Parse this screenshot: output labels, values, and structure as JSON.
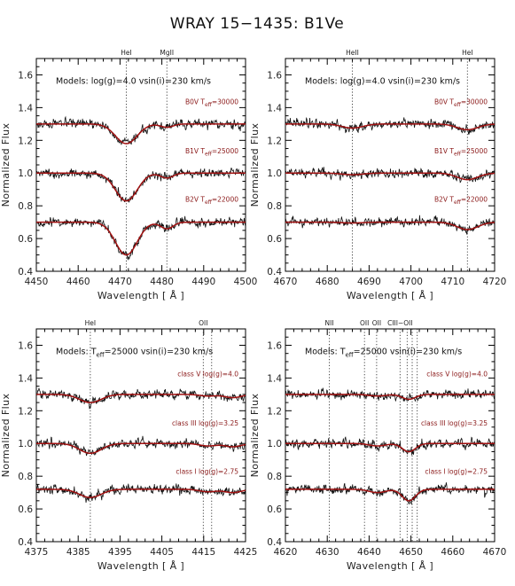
{
  "figure": {
    "title": "WRAY 15−1435: B1Ve",
    "colors": {
      "observed": "#111111",
      "model": "#a01010",
      "axis": "#000000",
      "label_red": "#8b1a1a"
    }
  },
  "chart_data": [
    {
      "type": "line",
      "xlabel": "Wavelength [ Å ]",
      "ylabel": "Normalized Flux",
      "xlim": [
        4450,
        4500
      ],
      "ylim": [
        0.4,
        1.7
      ],
      "xticks": [
        4450,
        4460,
        4470,
        4480,
        4490,
        4500
      ],
      "xtick_labels": [
        "4450",
        "4460",
        "4470",
        "4480",
        "4490",
        "4500"
      ],
      "yticks": [
        0.4,
        0.6,
        0.8,
        1.0,
        1.2,
        1.4,
        1.6
      ],
      "ytick_labels": [
        "0.4",
        "0.6",
        "0.8",
        "1.0",
        "1.2",
        "1.4",
        "1.6"
      ],
      "annotation": "Models: log(g)=4.0 vsin(i)=230 km/s",
      "lines": [
        {
          "label": "HeI",
          "x": 4471.5
        },
        {
          "label": "MgII",
          "x": 4481.2
        }
      ],
      "series": [
        {
          "label": "B0V T",
          "sub": "eff",
          "value": "=30000",
          "offset": 1.3,
          "label_y": 1.42,
          "features": [
            {
              "x": 4471.5,
              "depth": 0.12,
              "width": 2.6
            },
            {
              "x": 4481.2,
              "depth": 0.02,
              "width": 1.5
            }
          ]
        },
        {
          "label": "B1V T",
          "sub": "eff",
          "value": "=25000",
          "offset": 1.0,
          "label_y": 1.12,
          "features": [
            {
              "x": 4471.5,
              "depth": 0.17,
              "width": 2.6
            },
            {
              "x": 4481.2,
              "depth": 0.03,
              "width": 1.5
            }
          ]
        },
        {
          "label": "B2V T",
          "sub": "eff",
          "value": "=22000",
          "offset": 0.7,
          "label_y": 0.825,
          "features": [
            {
              "x": 4471.5,
              "depth": 0.2,
              "width": 2.6
            },
            {
              "x": 4481.2,
              "depth": 0.04,
              "width": 1.5
            }
          ]
        }
      ]
    },
    {
      "type": "line",
      "xlabel": "Wavelength [ Å ]",
      "ylabel": "Normalized Flux",
      "xlim": [
        4670,
        4720
      ],
      "ylim": [
        0.4,
        1.7
      ],
      "xticks": [
        4670,
        4680,
        4690,
        4700,
        4710,
        4720
      ],
      "xtick_labels": [
        "4670",
        "4680",
        "4690",
        "4700",
        "4710",
        "4720"
      ],
      "yticks": [
        0.4,
        0.6,
        0.8,
        1.0,
        1.2,
        1.4,
        1.6
      ],
      "ytick_labels": [
        "0.4",
        "0.6",
        "0.8",
        "1.0",
        "1.2",
        "1.4",
        "1.6"
      ],
      "annotation": "Models: log(g)=4.0 vsin(i)=230 km/s",
      "lines": [
        {
          "label": "HeII",
          "x": 4686.0
        },
        {
          "label": "HeI",
          "x": 4713.5
        }
      ],
      "series": [
        {
          "label": "B0V T",
          "sub": "eff",
          "value": "=30000",
          "offset": 1.3,
          "label_y": 1.42,
          "features": [
            {
              "x": 4686.0,
              "depth": 0.025,
              "width": 2.5
            },
            {
              "x": 4713.5,
              "depth": 0.035,
              "width": 2.5
            }
          ]
        },
        {
          "label": "B1V T",
          "sub": "eff",
          "value": "=25000",
          "offset": 1.0,
          "label_y": 1.12,
          "features": [
            {
              "x": 4686.0,
              "depth": 0.01,
              "width": 2.5
            },
            {
              "x": 4713.5,
              "depth": 0.04,
              "width": 2.5
            }
          ]
        },
        {
          "label": "B2V T",
          "sub": "eff",
          "value": "=22000",
          "offset": 0.7,
          "label_y": 0.825,
          "features": [
            {
              "x": 4686.0,
              "depth": 0.005,
              "width": 2.5
            },
            {
              "x": 4713.5,
              "depth": 0.045,
              "width": 2.5
            }
          ]
        }
      ]
    },
    {
      "type": "line",
      "xlabel": "Wavelength [ Å ]",
      "ylabel": "Normalized Flux",
      "xlim": [
        4375,
        4425
      ],
      "ylim": [
        0.4,
        1.7
      ],
      "xticks": [
        4375,
        4385,
        4395,
        4405,
        4415,
        4425
      ],
      "xtick_labels": [
        "4375",
        "4385",
        "4395",
        "4405",
        "4415",
        "4425"
      ],
      "yticks": [
        0.4,
        0.6,
        0.8,
        1.0,
        1.2,
        1.4,
        1.6
      ],
      "ytick_labels": [
        "0.4",
        "0.6",
        "0.8",
        "1.0",
        "1.2",
        "1.4",
        "1.6"
      ],
      "annotation": "Models: T",
      "annotation_sub": "eff",
      "annotation_rest": "=25000 vsin(i)=230 km/s",
      "lines": [
        {
          "label": "HeI",
          "x": 4387.9
        },
        {
          "label": "OII",
          "x": 4414.9
        },
        {
          "x": 4416.9
        }
      ],
      "series": [
        {
          "label": "class V log(g)=4.0",
          "offset": 1.3,
          "label_y": 1.41,
          "features": [
            {
              "x": 4387.9,
              "depth": 0.05,
              "width": 2.6
            },
            {
              "x": 4416.0,
              "depth": 0.01,
              "width": 2.0
            },
            {
              "x": 4422.0,
              "depth": 0.02,
              "width": 2.0
            }
          ]
        },
        {
          "label": "class III log(g)=3.25",
          "offset": 1.0,
          "label_y": 1.11,
          "features": [
            {
              "x": 4387.9,
              "depth": 0.06,
              "width": 2.6
            },
            {
              "x": 4416.0,
              "depth": 0.015,
              "width": 2.0
            },
            {
              "x": 4422.0,
              "depth": 0.02,
              "width": 2.0
            }
          ]
        },
        {
          "label": "class I log(g)=2.75",
          "offset": 0.72,
          "label_y": 0.815,
          "features": [
            {
              "x": 4387.9,
              "depth": 0.05,
              "width": 2.6
            },
            {
              "x": 4416.0,
              "depth": 0.015,
              "width": 2.0
            },
            {
              "x": 4422.0,
              "depth": 0.02,
              "width": 2.0
            }
          ]
        }
      ]
    },
    {
      "type": "line",
      "xlabel": "Wavelength [ Å ]",
      "ylabel": "Normalized Flux",
      "xlim": [
        4620,
        4670
      ],
      "ylim": [
        0.4,
        1.7
      ],
      "xticks": [
        4620,
        4630,
        4640,
        4650,
        4660,
        4670
      ],
      "xtick_labels": [
        "4620",
        "4630",
        "4640",
        "4650",
        "4660",
        "4670"
      ],
      "yticks": [
        0.4,
        0.6,
        0.8,
        1.0,
        1.2,
        1.4,
        1.6
      ],
      "ytick_labels": [
        "0.4",
        "0.6",
        "0.8",
        "1.0",
        "1.2",
        "1.4",
        "1.6"
      ],
      "annotation": "Models: T",
      "annotation_sub": "eff",
      "annotation_rest": "=25000 vsin(i)=230 km/s",
      "lines": [
        {
          "label": "NII",
          "x": 4630.5
        },
        {
          "label": "OII",
          "x": 4638.9
        },
        {
          "label": "OII",
          "x": 4641.8
        },
        {
          "label": "CIII−OII",
          "x": 4647.4
        },
        {
          "x": 4649.1
        },
        {
          "x": 4650.3
        },
        {
          "x": 4651.5
        }
      ],
      "series": [
        {
          "label": "class V log(g)=4.0",
          "offset": 1.3,
          "label_y": 1.41,
          "features": [
            {
              "x": 4642.0,
              "depth": 0.01,
              "width": 2.0
            },
            {
              "x": 4649.5,
              "depth": 0.03,
              "width": 1.6
            }
          ]
        },
        {
          "label": "class III log(g)=3.25",
          "offset": 1.0,
          "label_y": 1.11,
          "features": [
            {
              "x": 4642.0,
              "depth": 0.015,
              "width": 2.0
            },
            {
              "x": 4649.5,
              "depth": 0.05,
              "width": 1.6
            }
          ]
        },
        {
          "label": "class I log(g)=2.75",
          "offset": 0.72,
          "label_y": 0.815,
          "features": [
            {
              "x": 4642.0,
              "depth": 0.02,
              "width": 2.0
            },
            {
              "x": 4649.5,
              "depth": 0.07,
              "width": 1.6
            }
          ]
        }
      ]
    }
  ]
}
